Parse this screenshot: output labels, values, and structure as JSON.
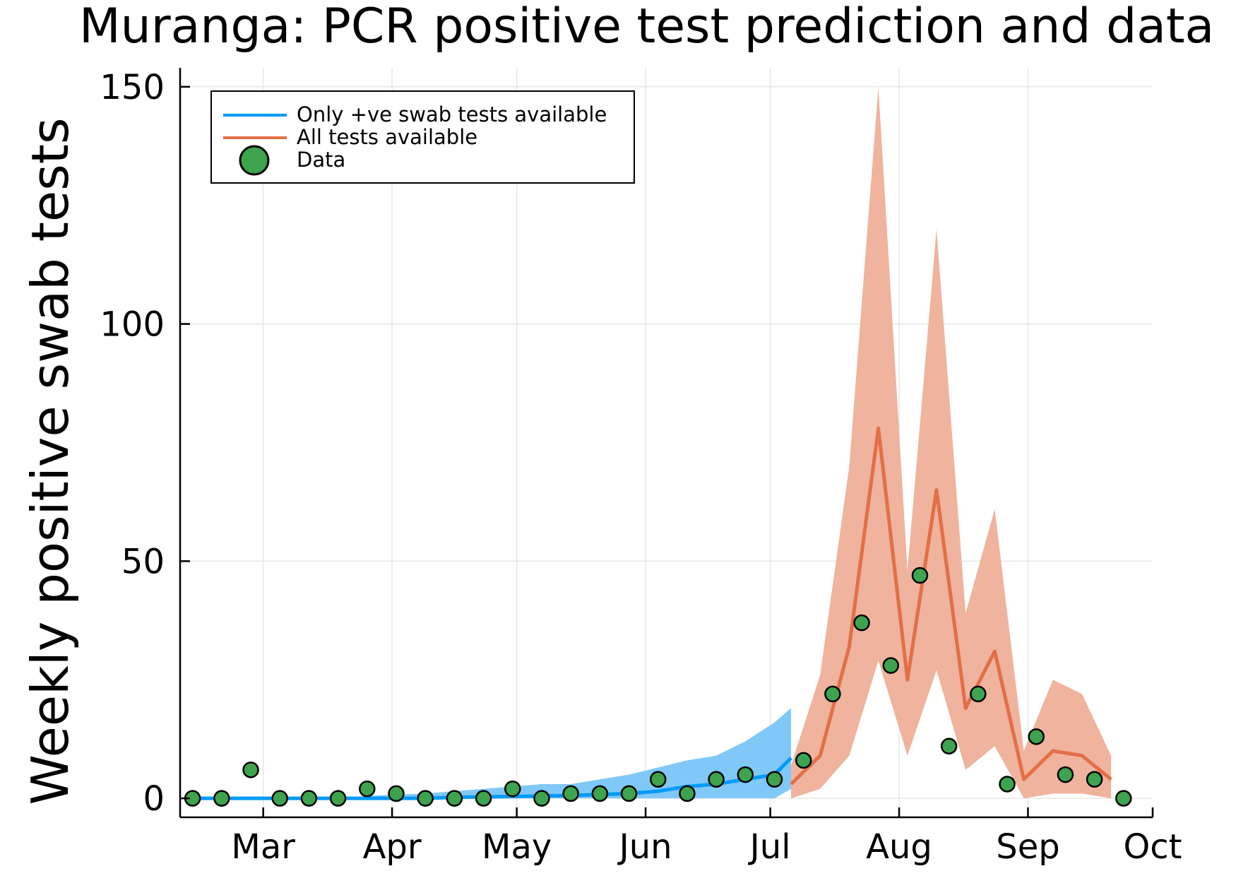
{
  "chart_data": {
    "type": "line",
    "title": "Muranga: PCR positive test prediction and data",
    "xlabel": "",
    "ylabel": "Weekly positive swab tests",
    "ylim": [
      -4,
      154
    ],
    "yticks": [
      0,
      50,
      100,
      150
    ],
    "xticks": [
      {
        "label": "Mar",
        "date": "2020-03-01"
      },
      {
        "label": "Apr",
        "date": "2020-04-01"
      },
      {
        "label": "May",
        "date": "2020-05-01"
      },
      {
        "label": "Jun",
        "date": "2020-06-01"
      },
      {
        "label": "Jul",
        "date": "2020-07-01"
      },
      {
        "label": "Aug",
        "date": "2020-08-01"
      },
      {
        "label": "Sep",
        "date": "2020-09-01"
      },
      {
        "label": "Oct",
        "date": "2020-10-01"
      }
    ],
    "xlim": [
      "2020-02-10",
      "2020-10-01"
    ],
    "grid": true,
    "legend_position": "top-left",
    "series": [
      {
        "name": "Only +ve swab tests available",
        "kind": "line_with_band",
        "color": "#009AFA",
        "band_color": "#7FC8F8",
        "x": [
          "2020-02-13",
          "2020-02-20",
          "2020-02-27",
          "2020-03-05",
          "2020-03-12",
          "2020-03-19",
          "2020-03-26",
          "2020-04-02",
          "2020-04-09",
          "2020-04-16",
          "2020-04-23",
          "2020-04-30",
          "2020-05-07",
          "2020-05-14",
          "2020-05-21",
          "2020-05-28",
          "2020-06-04",
          "2020-06-11",
          "2020-06-18",
          "2020-06-25",
          "2020-07-02",
          "2020-07-06"
        ],
        "values": [
          0,
          0,
          0,
          0,
          0,
          0,
          0,
          0,
          0,
          0.2,
          0.3,
          0.4,
          0.5,
          0.6,
          0.8,
          1,
          1.5,
          2.5,
          3,
          4,
          5,
          8.5
        ],
        "lower": [
          0,
          0,
          0,
          0,
          0,
          0,
          0,
          0,
          0,
          0,
          0,
          0,
          0,
          0,
          0,
          0,
          0,
          0,
          0,
          0,
          0,
          2
        ],
        "upper": [
          0,
          0,
          0,
          0,
          0,
          0,
          0.5,
          0.8,
          1,
          1.5,
          2,
          2.5,
          3,
          3,
          4,
          5,
          6.5,
          8,
          9,
          12,
          16,
          19
        ]
      },
      {
        "name": "All tests available",
        "kind": "line_with_band",
        "color": "#E26F46",
        "band_color": "#F0B39D",
        "x": [
          "2020-07-06",
          "2020-07-13",
          "2020-07-20",
          "2020-07-27",
          "2020-08-03",
          "2020-08-10",
          "2020-08-17",
          "2020-08-24",
          "2020-08-31",
          "2020-09-07",
          "2020-09-14",
          "2020-09-21"
        ],
        "values": [
          3,
          9,
          32,
          78,
          25,
          65,
          19,
          31,
          4,
          10,
          9,
          4
        ],
        "lower": [
          0,
          2,
          9,
          29,
          9,
          27,
          6,
          11,
          0,
          1,
          1,
          0
        ],
        "upper": [
          7,
          26,
          70,
          150,
          48,
          120,
          39,
          61,
          10,
          25,
          22,
          9
        ]
      },
      {
        "name": "Data",
        "kind": "scatter",
        "color": "#3DA44D",
        "x": [
          "2020-02-13",
          "2020-02-20",
          "2020-02-27",
          "2020-03-05",
          "2020-03-12",
          "2020-03-19",
          "2020-03-26",
          "2020-04-02",
          "2020-04-09",
          "2020-04-16",
          "2020-04-23",
          "2020-04-30",
          "2020-05-07",
          "2020-05-14",
          "2020-05-21",
          "2020-05-28",
          "2020-06-04",
          "2020-06-11",
          "2020-06-18",
          "2020-06-25",
          "2020-07-02",
          "2020-07-09",
          "2020-07-16",
          "2020-07-23",
          "2020-07-30",
          "2020-08-06",
          "2020-08-13",
          "2020-08-20",
          "2020-08-27",
          "2020-09-03",
          "2020-09-10",
          "2020-09-17",
          "2020-09-24"
        ],
        "values": [
          0,
          0,
          6,
          0,
          0,
          0,
          2,
          1,
          0,
          0,
          0,
          2,
          0,
          1,
          1,
          1,
          4,
          1,
          4,
          5,
          4,
          8,
          22,
          37,
          28,
          47,
          11,
          22,
          3,
          13,
          5,
          4,
          0
        ]
      }
    ]
  }
}
